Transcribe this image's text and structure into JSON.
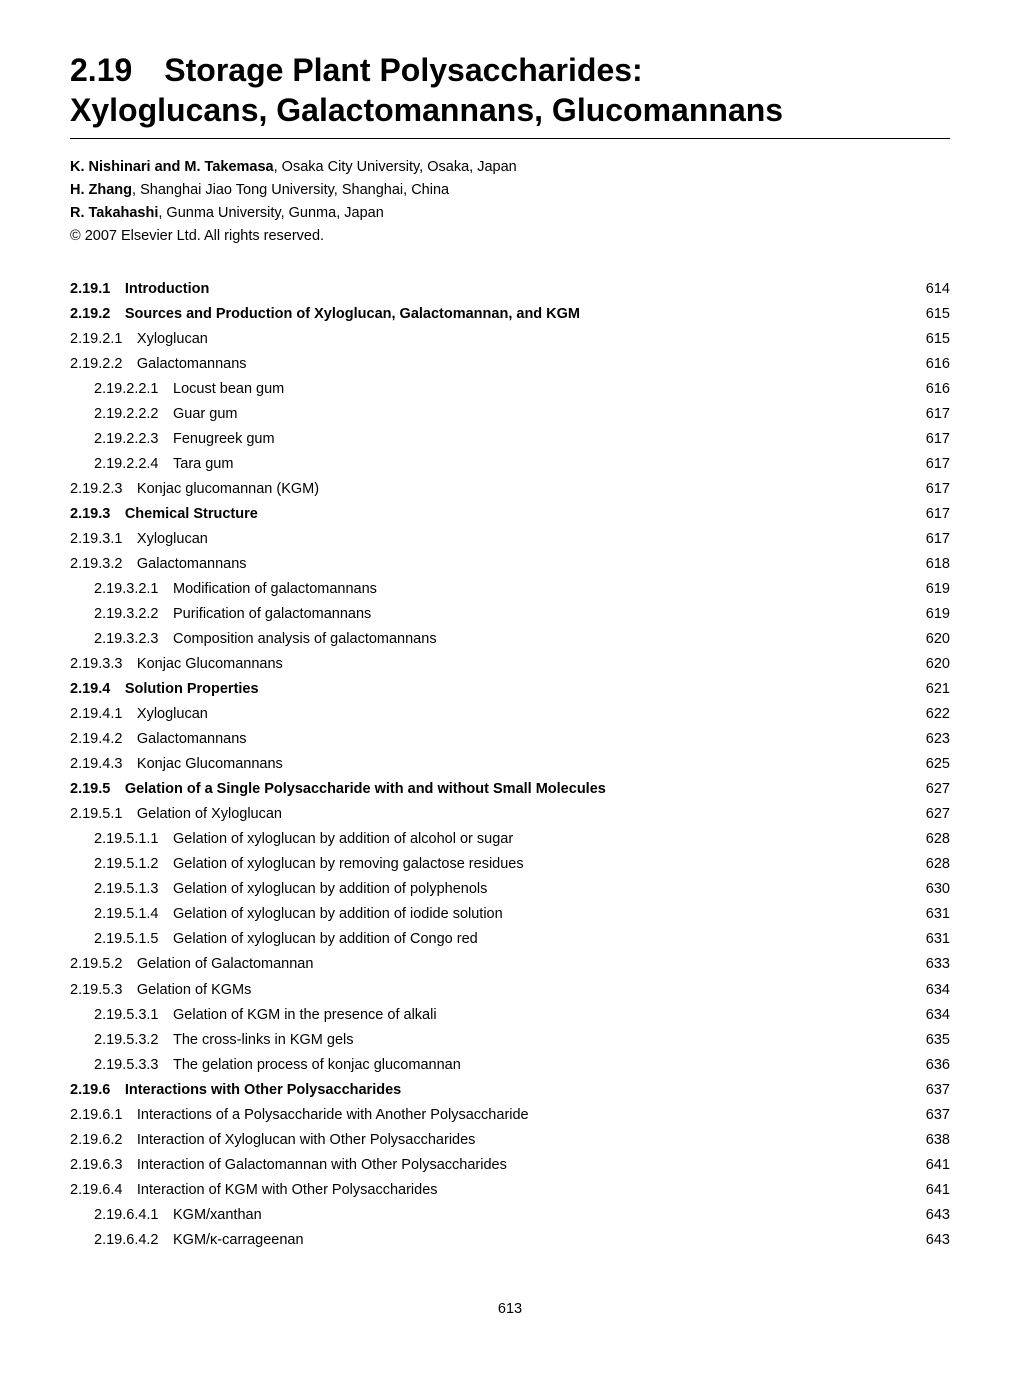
{
  "title_line1": "2.19 Storage Plant Polysaccharides:",
  "title_line2": "Xyloglucans, Galactomannans, Glucomannans",
  "authors": [
    {
      "name": "K. Nishinari and M. Takemasa",
      "affil": ", Osaka City University, Osaka, Japan"
    },
    {
      "name": "H. Zhang",
      "affil": ", Shanghai Jiao Tong University, Shanghai, China"
    },
    {
      "name": "R. Takahashi",
      "affil": ", Gunma University, Gunma, Japan"
    }
  ],
  "copyright": "© 2007 Elsevier Ltd. All rights reserved.",
  "toc": [
    {
      "label": "2.19.1 Introduction",
      "page": "614",
      "bold": true,
      "indent": 0
    },
    {
      "label": "2.19.2 Sources and Production of Xyloglucan, Galactomannan, and KGM",
      "page": "615",
      "bold": true,
      "indent": 0
    },
    {
      "label": "2.19.2.1 Xyloglucan",
      "page": "615",
      "bold": false,
      "indent": 1
    },
    {
      "label": "2.19.2.2 Galactomannans",
      "page": "616",
      "bold": false,
      "indent": 1
    },
    {
      "label": "2.19.2.2.1 Locust bean gum",
      "page": "616",
      "bold": false,
      "indent": 2
    },
    {
      "label": "2.19.2.2.2 Guar gum",
      "page": "617",
      "bold": false,
      "indent": 2
    },
    {
      "label": "2.19.2.2.3 Fenugreek gum",
      "page": "617",
      "bold": false,
      "indent": 2
    },
    {
      "label": "2.19.2.2.4 Tara gum",
      "page": "617",
      "bold": false,
      "indent": 2
    },
    {
      "label": "2.19.2.3 Konjac glucomannan (KGM)",
      "page": "617",
      "bold": false,
      "indent": 1
    },
    {
      "label": "2.19.3 Chemical Structure",
      "page": "617",
      "bold": true,
      "indent": 0
    },
    {
      "label": "2.19.3.1 Xyloglucan",
      "page": "617",
      "bold": false,
      "indent": 1
    },
    {
      "label": "2.19.3.2 Galactomannans",
      "page": "618",
      "bold": false,
      "indent": 1
    },
    {
      "label": "2.19.3.2.1 Modification of galactomannans",
      "page": "619",
      "bold": false,
      "indent": 2
    },
    {
      "label": "2.19.3.2.2 Purification of galactomannans",
      "page": "619",
      "bold": false,
      "indent": 2
    },
    {
      "label": "2.19.3.2.3 Composition analysis of galactomannans",
      "page": "620",
      "bold": false,
      "indent": 2
    },
    {
      "label": "2.19.3.3 Konjac Glucomannans",
      "page": "620",
      "bold": false,
      "indent": 1
    },
    {
      "label": "2.19.4 Solution Properties",
      "page": "621",
      "bold": true,
      "indent": 0
    },
    {
      "label": "2.19.4.1 Xyloglucan",
      "page": "622",
      "bold": false,
      "indent": 1
    },
    {
      "label": "2.19.4.2 Galactomannans",
      "page": "623",
      "bold": false,
      "indent": 1
    },
    {
      "label": "2.19.4.3 Konjac Glucomannans",
      "page": "625",
      "bold": false,
      "indent": 1
    },
    {
      "label": "2.19.5 Gelation of a Single Polysaccharide with and without Small Molecules",
      "page": "627",
      "bold": true,
      "indent": 0
    },
    {
      "label": "2.19.5.1 Gelation of Xyloglucan",
      "page": "627",
      "bold": false,
      "indent": 1
    },
    {
      "label": "2.19.5.1.1 Gelation of xyloglucan by addition of alcohol or sugar",
      "page": "628",
      "bold": false,
      "indent": 2
    },
    {
      "label": "2.19.5.1.2 Gelation of xyloglucan by removing galactose residues",
      "page": "628",
      "bold": false,
      "indent": 2
    },
    {
      "label": "2.19.5.1.3 Gelation of xyloglucan by addition of polyphenols",
      "page": "630",
      "bold": false,
      "indent": 2
    },
    {
      "label": "2.19.5.1.4 Gelation of xyloglucan by addition of iodide solution",
      "page": "631",
      "bold": false,
      "indent": 2
    },
    {
      "label": "2.19.5.1.5 Gelation of xyloglucan by addition of Congo red",
      "page": "631",
      "bold": false,
      "indent": 2
    },
    {
      "label": "2.19.5.2 Gelation of Galactomannan",
      "page": "633",
      "bold": false,
      "indent": 1
    },
    {
      "label": "2.19.5.3 Gelation of KGMs",
      "page": "634",
      "bold": false,
      "indent": 1
    },
    {
      "label": "2.19.5.3.1 Gelation of KGM in the presence of alkali",
      "page": "634",
      "bold": false,
      "indent": 2
    },
    {
      "label": "2.19.5.3.2 The cross-links in KGM gels",
      "page": "635",
      "bold": false,
      "indent": 2
    },
    {
      "label": "2.19.5.3.3 The gelation process of konjac glucomannan",
      "page": "636",
      "bold": false,
      "indent": 2
    },
    {
      "label": "2.19.6 Interactions with Other Polysaccharides",
      "page": "637",
      "bold": true,
      "indent": 0
    },
    {
      "label": "2.19.6.1 Interactions of a Polysaccharide with Another Polysaccharide",
      "page": "637",
      "bold": false,
      "indent": 1
    },
    {
      "label": "2.19.6.2 Interaction of Xyloglucan with Other Polysaccharides",
      "page": "638",
      "bold": false,
      "indent": 1
    },
    {
      "label": "2.19.6.3 Interaction of Galactomannan with Other Polysaccharides",
      "page": "641",
      "bold": false,
      "indent": 1
    },
    {
      "label": "2.19.6.4 Interaction of KGM with Other Polysaccharides",
      "page": "641",
      "bold": false,
      "indent": 1
    },
    {
      "label": "2.19.6.4.1 KGM/xanthan",
      "page": "643",
      "bold": false,
      "indent": 2
    },
    {
      "label": "2.19.6.4.2 KGM/κ-carrageenan",
      "page": "643",
      "bold": false,
      "indent": 2
    }
  ],
  "footer_page": "613"
}
